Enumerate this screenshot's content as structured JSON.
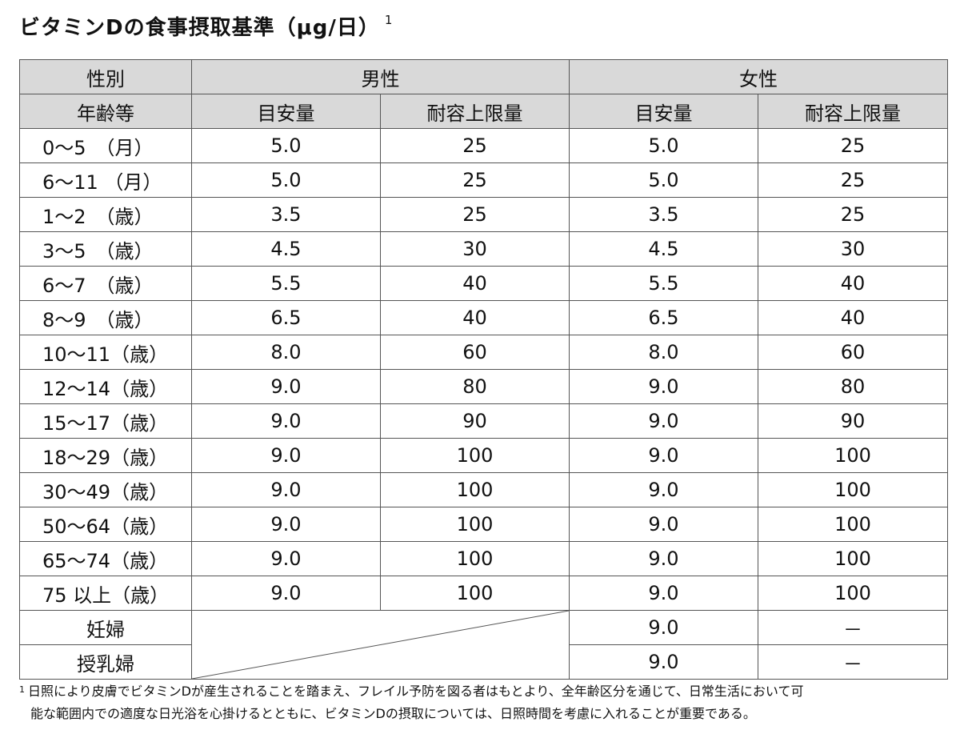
{
  "title": "ビタミンDの食事摂取基準（μg/日）",
  "title_note": "1",
  "header": {
    "sex_label": "性別",
    "male": "男性",
    "female": "女性",
    "age_label": "年齢等",
    "adequate": "目安量",
    "upper_limit": "耐容上限量"
  },
  "rows": [
    {
      "age": "0～5　（月）",
      "m_ai": "5.0",
      "m_ul": "25",
      "f_ai": "5.0",
      "f_ul": "25"
    },
    {
      "age": "6～11 （月）",
      "m_ai": "5.0",
      "m_ul": "25",
      "f_ai": "5.0",
      "f_ul": "25"
    },
    {
      "age": "1～2　（歳）",
      "m_ai": "3.5",
      "m_ul": "25",
      "f_ai": "3.5",
      "f_ul": "25"
    },
    {
      "age": "3～5　（歳）",
      "m_ai": "4.5",
      "m_ul": "30",
      "f_ai": "4.5",
      "f_ul": "30"
    },
    {
      "age": "6～7　（歳）",
      "m_ai": "5.5",
      "m_ul": "40",
      "f_ai": "5.5",
      "f_ul": "40"
    },
    {
      "age": "8～9　（歳）",
      "m_ai": "6.5",
      "m_ul": "40",
      "f_ai": "6.5",
      "f_ul": "40"
    },
    {
      "age": "10～11（歳）",
      "m_ai": "8.0",
      "m_ul": "60",
      "f_ai": "8.0",
      "f_ul": "60"
    },
    {
      "age": "12～14（歳）",
      "m_ai": "9.0",
      "m_ul": "80",
      "f_ai": "9.0",
      "f_ul": "80"
    },
    {
      "age": "15～17（歳）",
      "m_ai": "9.0",
      "m_ul": "90",
      "f_ai": "9.0",
      "f_ul": "90"
    },
    {
      "age": "18～29（歳）",
      "m_ai": "9.0",
      "m_ul": "100",
      "f_ai": "9.0",
      "f_ul": "100"
    },
    {
      "age": "30～49（歳）",
      "m_ai": "9.0",
      "m_ul": "100",
      "f_ai": "9.0",
      "f_ul": "100"
    },
    {
      "age": "50～64（歳）",
      "m_ai": "9.0",
      "m_ul": "100",
      "f_ai": "9.0",
      "f_ul": "100"
    },
    {
      "age": "65～74（歳）",
      "m_ai": "9.0",
      "m_ul": "100",
      "f_ai": "9.0",
      "f_ul": "100"
    },
    {
      "age": "75 以上（歳）",
      "m_ai": "9.0",
      "m_ul": "100",
      "f_ai": "9.0",
      "f_ul": "100"
    }
  ],
  "special_rows": [
    {
      "label": "妊婦",
      "f_ai": "9.0",
      "f_ul": "－"
    },
    {
      "label": "授乳婦",
      "f_ai": "9.0",
      "f_ul": "－"
    }
  ],
  "footnote": {
    "mark": "1",
    "line1": "日照により皮膚でビタミンDが産生されることを踏まえ、フレイル予防を図る者はもとより、全年齢区分を通じて、日常生活において可",
    "line2": "能な範囲内での適度な日光浴を心掛けるとともに、ビタミンDの摂取については、日照時間を考慮に入れることが重要である。"
  },
  "colors": {
    "header_bg": "#d9d9d9",
    "border": "#555555"
  }
}
